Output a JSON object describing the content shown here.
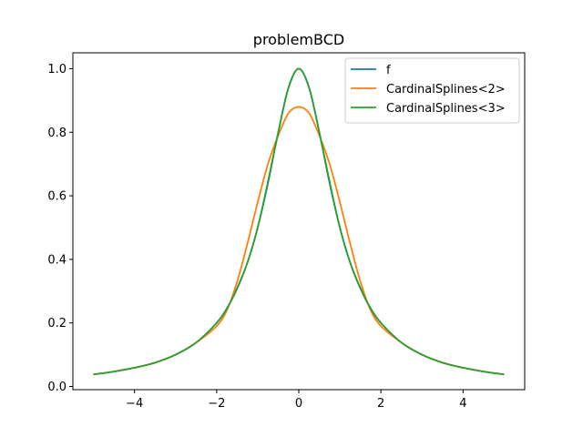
{
  "chart_data": {
    "type": "line",
    "title": "problemBCD",
    "xlabel": "",
    "ylabel": "",
    "xlim": [
      -5.5,
      5.5
    ],
    "ylim": [
      -0.01,
      1.05
    ],
    "grid": false,
    "legend_position": "top-right",
    "xticks": [
      -4,
      -2,
      0,
      2,
      4
    ],
    "xtick_labels": [
      "−4",
      "−2",
      "0",
      "2",
      "4"
    ],
    "yticks": [
      0.0,
      0.2,
      0.4,
      0.6,
      0.8,
      1.0
    ],
    "ytick_labels": [
      "0.0",
      "0.2",
      "0.4",
      "0.6",
      "0.8",
      "1.0"
    ],
    "series": [
      {
        "name": "f",
        "color": "#1f77b4",
        "x": [
          -5,
          -4.5,
          -4,
          -3.5,
          -3,
          -2.5,
          -2,
          -1.75,
          -1.5,
          -1.25,
          -1,
          -0.75,
          -0.5,
          -0.25,
          0,
          0.25,
          0.5,
          0.75,
          1,
          1.25,
          1.5,
          1.75,
          2,
          2.5,
          3,
          3.5,
          4,
          4.5,
          5
        ],
        "y": [
          0.038,
          0.047,
          0.059,
          0.075,
          0.1,
          0.138,
          0.2,
          0.246,
          0.308,
          0.39,
          0.5,
          0.64,
          0.8,
          0.941,
          1.0,
          0.941,
          0.8,
          0.64,
          0.5,
          0.39,
          0.308,
          0.246,
          0.2,
          0.138,
          0.1,
          0.075,
          0.059,
          0.047,
          0.038
        ]
      },
      {
        "name": "CardinalSplines<2>",
        "color": "#ff7f0e",
        "x": [
          -5,
          -4.5,
          -4,
          -3.5,
          -3,
          -2.5,
          -2,
          -1.75,
          -1.5,
          -1.25,
          -1,
          -0.75,
          -0.5,
          -0.25,
          0,
          0.25,
          0.5,
          0.75,
          1,
          1.25,
          1.5,
          1.75,
          2,
          2.5,
          3,
          3.5,
          4,
          4.5,
          5
        ],
        "y": [
          0.038,
          0.047,
          0.059,
          0.075,
          0.1,
          0.138,
          0.19,
          0.24,
          0.33,
          0.45,
          0.58,
          0.7,
          0.79,
          0.86,
          0.88,
          0.86,
          0.79,
          0.7,
          0.58,
          0.45,
          0.33,
          0.24,
          0.19,
          0.138,
          0.1,
          0.075,
          0.059,
          0.047,
          0.038
        ]
      },
      {
        "name": "CardinalSplines<3>",
        "color": "#2ca02c",
        "x": [
          -5,
          -4.5,
          -4,
          -3.5,
          -3,
          -2.5,
          -2,
          -1.75,
          -1.5,
          -1.25,
          -1,
          -0.75,
          -0.5,
          -0.25,
          0,
          0.25,
          0.5,
          0.75,
          1,
          1.25,
          1.5,
          1.75,
          2,
          2.5,
          3,
          3.5,
          4,
          4.5,
          5
        ],
        "y": [
          0.038,
          0.047,
          0.059,
          0.075,
          0.1,
          0.138,
          0.2,
          0.245,
          0.31,
          0.39,
          0.5,
          0.645,
          0.8,
          0.94,
          1.0,
          0.94,
          0.8,
          0.645,
          0.5,
          0.39,
          0.31,
          0.245,
          0.2,
          0.138,
          0.1,
          0.075,
          0.059,
          0.047,
          0.038
        ]
      }
    ]
  }
}
